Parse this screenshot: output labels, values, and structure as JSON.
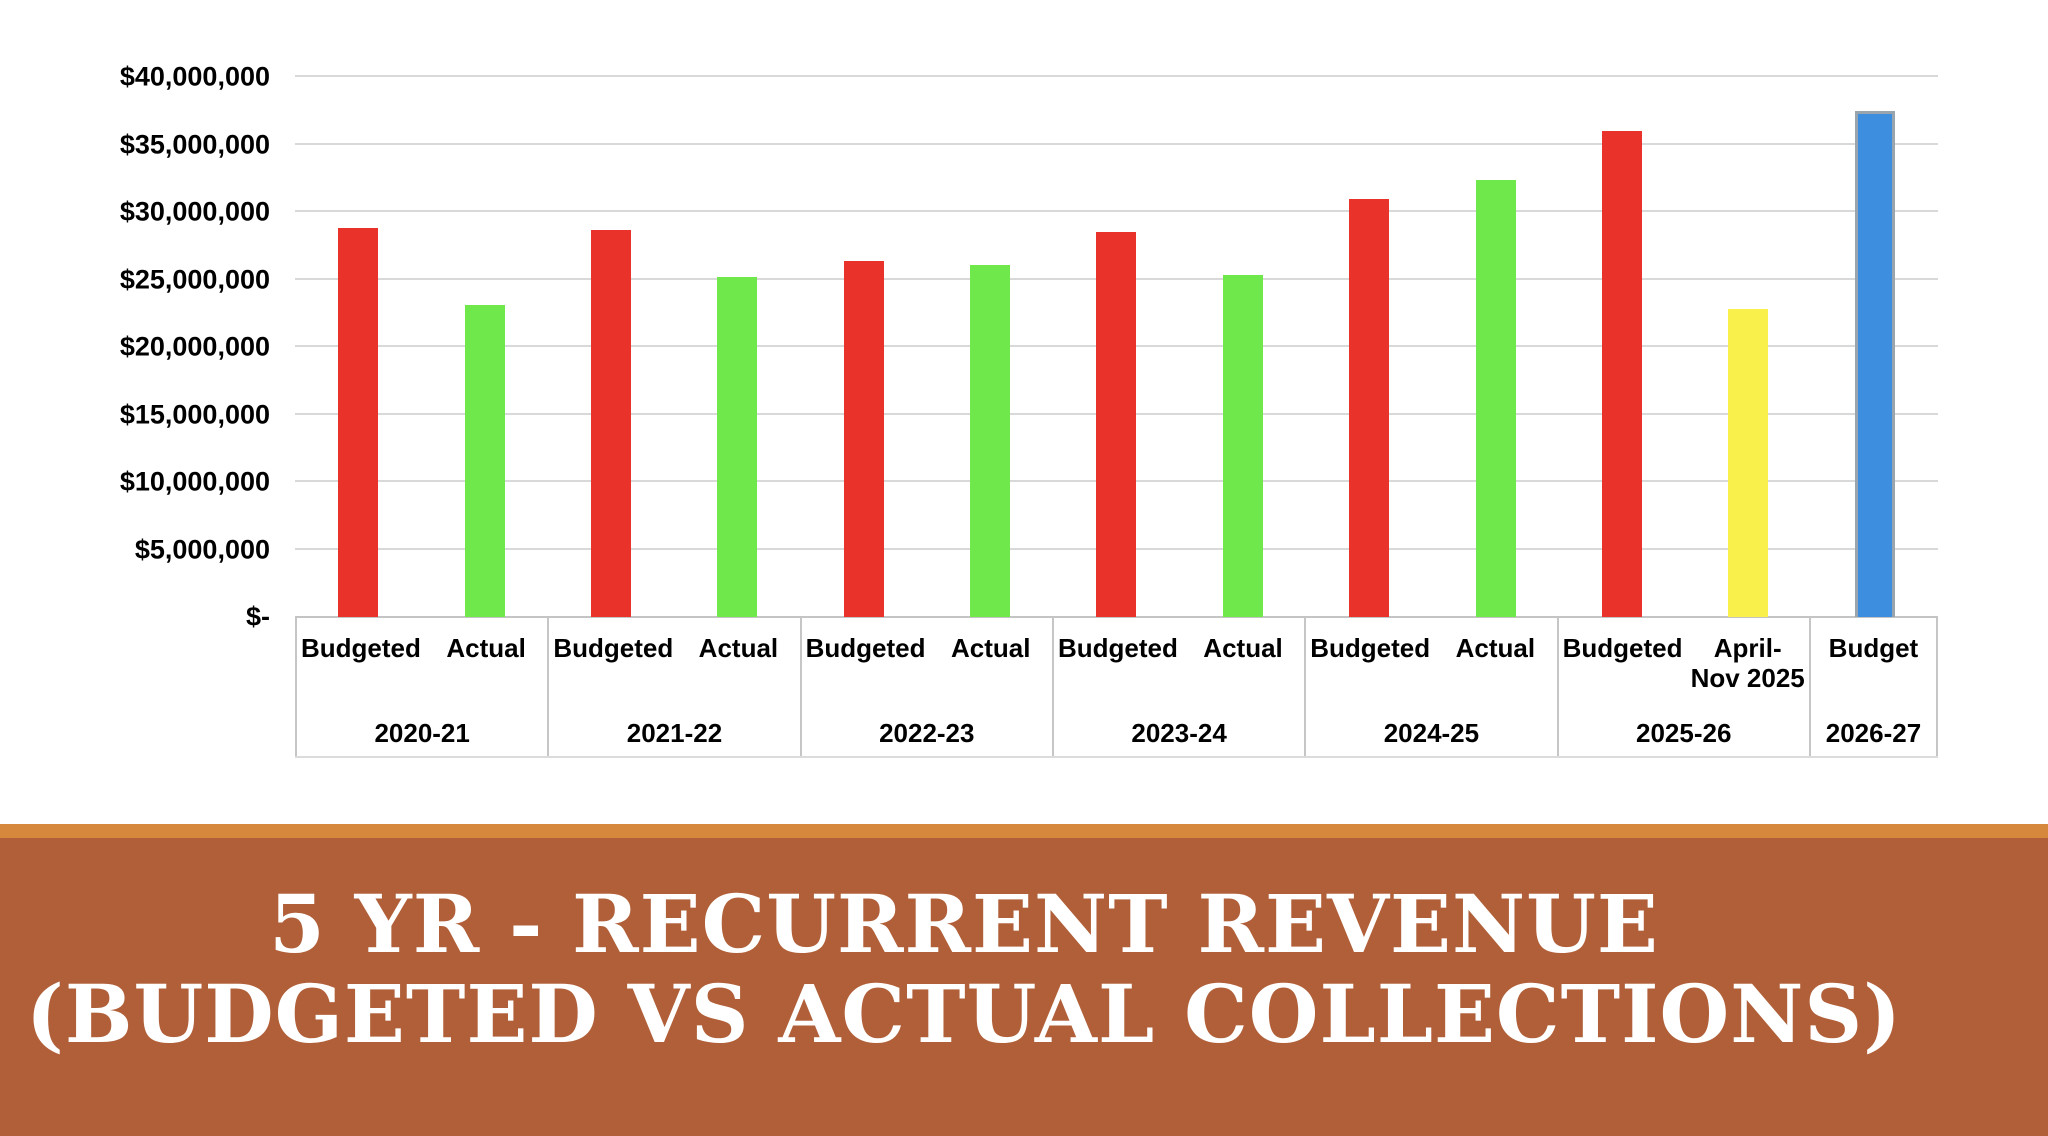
{
  "title": {
    "line1": "5 YR - RECURRENT REVENUE",
    "line2": "(BUDGETED VS ACTUAL COLLECTIONS)"
  },
  "banner": {
    "stripe_color": "#D6893C",
    "background_color": "#B15F38",
    "text_color": "#FFFFFF"
  },
  "chart_data": {
    "type": "bar",
    "title": "5 YR - RECURRENT REVENUE (BUDGETED VS ACTUAL COLLECTIONS)",
    "xlabel": "",
    "ylabel": "",
    "ylim": [
      0,
      40000000
    ],
    "grid": true,
    "legend": "none",
    "gridline_color": "#D9D9D9",
    "axis_line_color": "#C4C4C4",
    "y_ticks": [
      {
        "value": 40000000,
        "label": "$40,000,000"
      },
      {
        "value": 35000000,
        "label": "$35,000,000"
      },
      {
        "value": 30000000,
        "label": "$30,000,000"
      },
      {
        "value": 25000000,
        "label": "$25,000,000"
      },
      {
        "value": 20000000,
        "label": "$20,000,000"
      },
      {
        "value": 15000000,
        "label": "$15,000,000"
      },
      {
        "value": 10000000,
        "label": "$10,000,000"
      },
      {
        "value": 5000000,
        "label": "$5,000,000"
      },
      {
        "value": 0,
        "label": "$-"
      }
    ],
    "colors": {
      "budgeted_red": "#E8322A",
      "actual_green": "#6FE84C",
      "partial_yellow": "#F9F04B",
      "budget_blue": "#3E8EE0"
    },
    "groups": [
      {
        "category": "2020-21",
        "bars": [
          {
            "series": "Budgeted",
            "label": "Budgeted",
            "value": 28800000,
            "color": "#E8322A"
          },
          {
            "series": "Actual",
            "label": "Actual",
            "value": 23100000,
            "color": "#6FE84C"
          }
        ]
      },
      {
        "category": "2021-22",
        "bars": [
          {
            "series": "Budgeted",
            "label": "Budgeted",
            "value": 28700000,
            "color": "#E8322A"
          },
          {
            "series": "Actual",
            "label": "Actual",
            "value": 25200000,
            "color": "#6FE84C"
          }
        ]
      },
      {
        "category": "2022-23",
        "bars": [
          {
            "series": "Budgeted",
            "label": "Budgeted",
            "value": 26400000,
            "color": "#E8322A"
          },
          {
            "series": "Actual",
            "label": "Actual",
            "value": 26100000,
            "color": "#6FE84C"
          }
        ]
      },
      {
        "category": "2023-24",
        "bars": [
          {
            "series": "Budgeted",
            "label": "Budgeted",
            "value": 28500000,
            "color": "#E8322A"
          },
          {
            "series": "Actual",
            "label": "Actual",
            "value": 25300000,
            "color": "#6FE84C"
          }
        ]
      },
      {
        "category": "2024-25",
        "bars": [
          {
            "series": "Budgeted",
            "label": "Budgeted",
            "value": 31000000,
            "color": "#E8322A"
          },
          {
            "series": "Actual",
            "label": "Actual",
            "value": 32400000,
            "color": "#6FE84C"
          }
        ]
      },
      {
        "category": "2025-26",
        "bars": [
          {
            "series": "Budgeted",
            "label": "Budgeted",
            "value": 36000000,
            "color": "#E8322A"
          },
          {
            "series": "April-Nov 2025",
            "label": "April-Nov 2025",
            "value": 22800000,
            "color": "#F9F04B"
          }
        ]
      },
      {
        "category": "2026-27",
        "bars": [
          {
            "series": "Budget",
            "label": "Budget",
            "value": 37500000,
            "color": "#3E8EE0",
            "border_color": "#98A5AE"
          }
        ]
      }
    ]
  }
}
